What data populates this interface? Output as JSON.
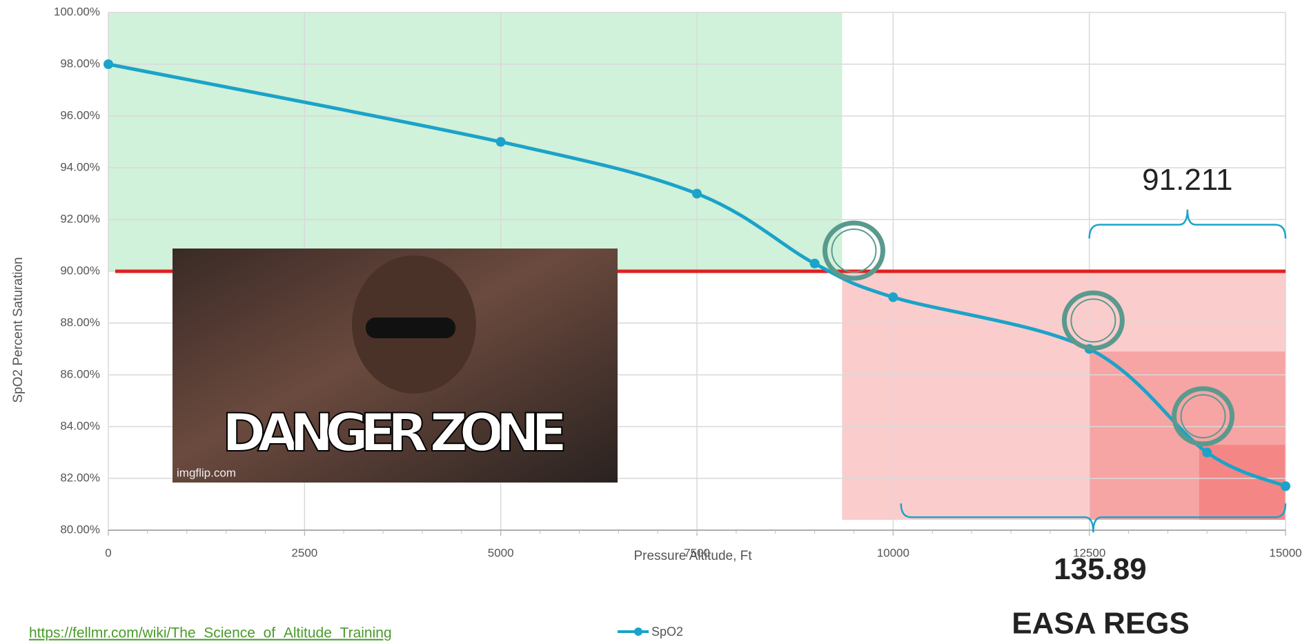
{
  "chart_data": {
    "type": "line",
    "x_label": "Pressure Altitude, Ft",
    "y_label": "SpO2 Percent Saturation",
    "xlim": [
      0,
      15000
    ],
    "ylim": [
      80,
      100
    ],
    "xticks": [
      0,
      2500,
      5000,
      7500,
      10000,
      12500,
      15000
    ],
    "yticks": [
      {
        "value": 80,
        "label": "80.00%"
      },
      {
        "value": 82,
        "label": "82.00%"
      },
      {
        "value": 84,
        "label": "84.00%"
      },
      {
        "value": 86,
        "label": "86.00%"
      },
      {
        "value": 88,
        "label": "88.00%"
      },
      {
        "value": 90,
        "label": "90.00%"
      },
      {
        "value": 92,
        "label": "92.00%"
      },
      {
        "value": 94,
        "label": "94.00%"
      },
      {
        "value": 96,
        "label": "96.00%"
      },
      {
        "value": 98,
        "label": "98.00%"
      },
      {
        "value": 100,
        "label": "100.00%"
      }
    ],
    "grid": true,
    "series": [
      {
        "name": "SpO2",
        "color": "#1ba3c9",
        "x": [
          0,
          5000,
          7500,
          9000,
          10000,
          12500,
          14000,
          15000
        ],
        "values": [
          98,
          95,
          93,
          90.3,
          89,
          87,
          83,
          81.7
        ]
      }
    ],
    "bands": [
      {
        "x": [
          0,
          9350
        ],
        "y": [
          90,
          100
        ],
        "color": "rgba(120,215,150,0.35)"
      },
      {
        "x": [
          9350,
          15000
        ],
        "y": [
          80.4,
          90
        ],
        "color": "rgba(245,120,120,0.38)"
      },
      {
        "x": [
          12500,
          15000
        ],
        "y": [
          80.4,
          86.9
        ],
        "color": "rgba(240,90,90,0.35)"
      },
      {
        "x": [
          13900,
          15000
        ],
        "y": [
          80.4,
          83.3
        ],
        "color": "rgba(240,80,80,0.35)"
      }
    ],
    "threshold": {
      "value": 90,
      "color": "#e02020"
    },
    "highlights": {
      "x": [
        9500,
        12550,
        13950
      ],
      "y": [
        90.8,
        88.1,
        84.4
      ],
      "color": "#5a9a8e"
    },
    "brackets": [
      {
        "x": [
          12500,
          15000
        ],
        "y": 91.8,
        "label": "91.211",
        "side": "top"
      },
      {
        "x": [
          10100,
          15000
        ],
        "y": 80.5,
        "label": "135.89",
        "side": "bottom"
      }
    ],
    "footer_label": "EASA REGS",
    "source": "https://fellmr.com/wiki/The_Science_of_Altitude_Training",
    "image": {
      "caption": "DANGER ZONE",
      "credit": "imgflip.com"
    }
  }
}
